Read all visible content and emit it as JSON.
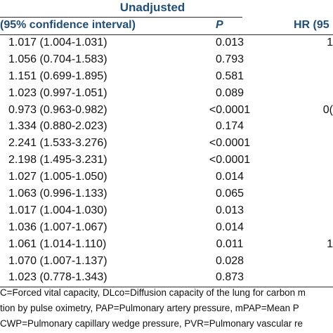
{
  "table": {
    "group_header": "Unadjusted",
    "col_ci": "(95% confidence interval)",
    "col_p": "P",
    "col_hr": "HR (95",
    "rows": [
      {
        "ci": "1.017 (1.004-1.031)",
        "p": "0.013",
        "hr": "1"
      },
      {
        "ci": "1.056 (0.704-1.583)",
        "p": "0.793",
        "hr": ""
      },
      {
        "ci": "1.151 (0.699-1.895)",
        "p": "0.581",
        "hr": ""
      },
      {
        "ci": "1.023 (0.997-1.051)",
        "p": "0.089",
        "hr": ""
      },
      {
        "ci": "0.973 (0.963-0.982)",
        "p": "<0.0001",
        "hr": "0("
      },
      {
        "ci": "1.334 (0.880-2.023)",
        "p": "0.174",
        "hr": ""
      },
      {
        "ci": "2.241 (1.533-3.276)",
        "p": "<0.0001",
        "hr": ""
      },
      {
        "ci": "2.198 (1.495-3.231)",
        "p": "<0.0001",
        "hr": ""
      },
      {
        "ci": "1.027 (1.005-1.050)",
        "p": "0.014",
        "hr": ""
      },
      {
        "ci": "1.063 (0.996-1.133)",
        "p": "0.065",
        "hr": ""
      },
      {
        "ci": "1.017 (1.004-1.030)",
        "p": "0.013",
        "hr": ""
      },
      {
        "ci": "1.036 (1.007-1.067)",
        "p": "0.014",
        "hr": ""
      },
      {
        "ci": "1.061 (1.014-1.110)",
        "p": "0.011",
        "hr": "1"
      },
      {
        "ci": "1.070 (1.007-1.137)",
        "p": "0.028",
        "hr": ""
      },
      {
        "ci": "1.023 (0.778-1.343)",
        "p": "0.873",
        "hr": ""
      }
    ]
  },
  "footnotes": [
    "C=Forced vital capacity, DLco=Diffusion capacity of the lung for carbon m",
    "tion by pulse oximetry, PAP=Pulmonary artery pressure, mPAP=Mean P",
    "CWP=Pulmonary capillary wedge pressure, PVR=Pulmonary vascular re"
  ]
}
